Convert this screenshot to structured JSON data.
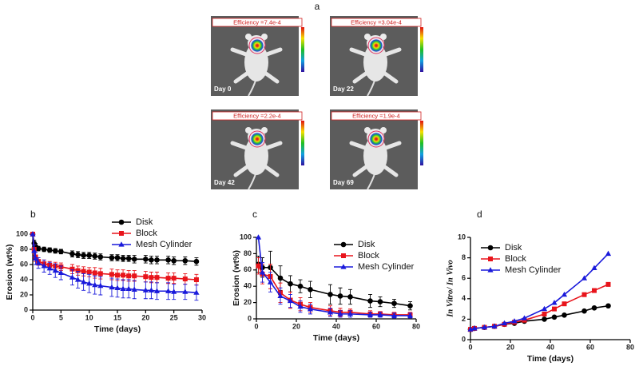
{
  "figure_a": {
    "panel_label": "a",
    "images": [
      {
        "efficiency": "Efficiency =7.4e-4",
        "day": "Day 0"
      },
      {
        "efficiency": "Efficiency =3.04e-4",
        "day": "Day 22"
      },
      {
        "efficiency": "Efficiency =2.2e-4",
        "day": "Day 42"
      },
      {
        "efficiency": "Efficiency =1.9e-4",
        "day": "Day 69"
      }
    ]
  },
  "chart_data": [
    {
      "type": "line",
      "panel_label": "b",
      "xlabel": "Time (days)",
      "ylabel": "Erosion (wt%)",
      "xlim": [
        0,
        30
      ],
      "xticks": [
        0,
        5,
        10,
        15,
        20,
        25,
        30
      ],
      "ylim": [
        0,
        100
      ],
      "yticks": [
        0,
        20,
        40,
        60,
        80,
        100
      ],
      "x": [
        0,
        0.25,
        0.5,
        1,
        2,
        3,
        4,
        5,
        7,
        8,
        9,
        10,
        11,
        12,
        14,
        15,
        16,
        17,
        18,
        20,
        21,
        22,
        24,
        25,
        27,
        29
      ],
      "series": [
        {
          "name": "Disk",
          "color": "#000000",
          "marker": "circle",
          "values": [
            100,
            88,
            84,
            81,
            80,
            79,
            78,
            77,
            74,
            73,
            72,
            72,
            71,
            70,
            69,
            69,
            68,
            68,
            67,
            67,
            66,
            66,
            66,
            65,
            65,
            64
          ],
          "errors": [
            0,
            4,
            4,
            3,
            3,
            3,
            3,
            3,
            4,
            4,
            4,
            4,
            4,
            4,
            4,
            4,
            4,
            4,
            5,
            5,
            5,
            5,
            5,
            5,
            5,
            5
          ]
        },
        {
          "name": "Block",
          "color": "#e8141b",
          "marker": "square",
          "values": [
            100,
            80,
            70,
            64,
            61,
            59,
            58,
            57,
            54,
            52,
            51,
            50,
            49,
            48,
            47,
            46,
            46,
            45,
            45,
            44,
            43,
            43,
            42,
            42,
            41,
            40
          ],
          "errors": [
            0,
            6,
            6,
            5,
            5,
            5,
            5,
            5,
            6,
            6,
            6,
            6,
            7,
            7,
            7,
            7,
            7,
            7,
            7,
            7,
            7,
            7,
            7,
            7,
            7,
            7
          ]
        },
        {
          "name": "Mesh Cylinder",
          "color": "#1a1adb",
          "marker": "triangle",
          "values": [
            100,
            78,
            68,
            62,
            58,
            55,
            52,
            49,
            43,
            40,
            37,
            35,
            33,
            32,
            30,
            29,
            28,
            28,
            27,
            26,
            26,
            25,
            25,
            24,
            24,
            23
          ],
          "errors": [
            0,
            8,
            8,
            7,
            8,
            8,
            9,
            9,
            10,
            11,
            11,
            12,
            12,
            12,
            12,
            12,
            12,
            12,
            12,
            11,
            11,
            11,
            11,
            10,
            10,
            10
          ]
        }
      ]
    },
    {
      "type": "line",
      "panel_label": "c",
      "xlabel": "Time (days)",
      "ylabel": "Erosion (wt%)",
      "xlim": [
        0,
        80
      ],
      "xticks": [
        0,
        20,
        40,
        60,
        80
      ],
      "ylim": [
        0,
        100
      ],
      "yticks": [
        0,
        20,
        40,
        60,
        80,
        100
      ],
      "x": [
        1,
        3,
        7,
        12,
        17,
        22,
        27,
        37,
        42,
        47,
        57,
        62,
        69,
        77
      ],
      "series": [
        {
          "name": "Disk",
          "color": "#000000",
          "marker": "circle",
          "values": [
            67,
            63,
            63,
            50,
            43,
            40,
            36,
            30,
            28,
            27,
            22,
            21,
            19,
            16
          ],
          "errors": [
            10,
            12,
            20,
            15,
            10,
            8,
            10,
            12,
            10,
            9,
            8,
            6,
            5,
            5
          ]
        },
        {
          "name": "Block",
          "color": "#e8141b",
          "marker": "square",
          "values": [
            65,
            55,
            52,
            32,
            23,
            18,
            14,
            10,
            8,
            8,
            6,
            6,
            5,
            5
          ],
          "errors": [
            10,
            12,
            15,
            12,
            10,
            8,
            6,
            6,
            5,
            4,
            4,
            3,
            3,
            3
          ]
        },
        {
          "name": "Mesh Cylinder",
          "color": "#1a1adb",
          "marker": "triangle",
          "values": [
            100,
            57,
            45,
            28,
            22,
            15,
            12,
            8,
            6,
            6,
            5,
            5,
            4,
            4
          ],
          "errors": [
            0,
            12,
            12,
            10,
            8,
            7,
            6,
            5,
            4,
            4,
            3,
            3,
            3,
            3
          ]
        }
      ]
    },
    {
      "type": "line",
      "panel_label": "d",
      "xlabel": "Time (days)",
      "ylabel": "In Vitro/ In Vivo",
      "xlim": [
        0,
        80
      ],
      "xticks": [
        0,
        20,
        40,
        60,
        80
      ],
      "ylim": [
        0,
        10
      ],
      "yticks": [
        0,
        2,
        4,
        6,
        8,
        10
      ],
      "x": [
        0,
        2,
        7,
        12,
        17,
        22,
        27,
        37,
        42,
        47,
        57,
        62,
        69
      ],
      "series": [
        {
          "name": "Disk",
          "color": "#000000",
          "marker": "circle",
          "values": [
            1,
            1.1,
            1.2,
            1.3,
            1.5,
            1.6,
            1.8,
            2.0,
            2.2,
            2.4,
            2.8,
            3.1,
            3.3
          ]
        },
        {
          "name": "Block",
          "color": "#e8141b",
          "marker": "square",
          "values": [
            1,
            1.1,
            1.2,
            1.3,
            1.5,
            1.7,
            1.9,
            2.5,
            3.0,
            3.5,
            4.4,
            4.8,
            5.4
          ]
        },
        {
          "name": "Mesh Cylinder",
          "color": "#1a1adb",
          "marker": "triangle",
          "values": [
            1,
            1.1,
            1.2,
            1.3,
            1.6,
            1.8,
            2.1,
            3.0,
            3.6,
            4.4,
            6.0,
            7.0,
            8.4
          ]
        }
      ]
    }
  ]
}
